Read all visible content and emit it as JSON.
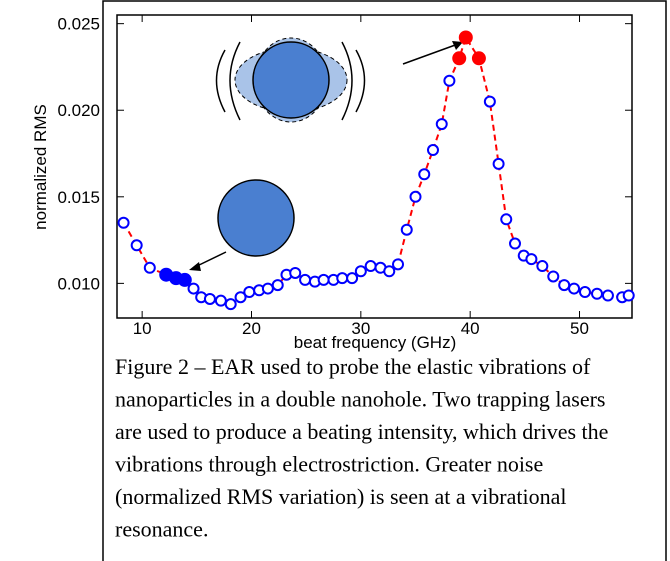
{
  "chart_data": {
    "type": "line",
    "xlabel": "beat frequency (GHz)",
    "ylabel": "normalized RMS",
    "x": [
      8.3,
      9.5,
      10.7,
      12.2,
      13.1,
      13.9,
      14.7,
      15.4,
      16.2,
      17.2,
      18.1,
      19.0,
      19.8,
      20.7,
      21.5,
      22.4,
      23.2,
      24.0,
      24.9,
      25.8,
      26.6,
      27.5,
      28.3,
      29.2,
      30.0,
      30.9,
      31.8,
      32.6,
      33.4,
      34.2,
      35.0,
      35.8,
      36.6,
      37.4,
      38.1,
      39.0,
      39.6,
      40.8,
      41.8,
      42.6,
      43.3,
      44.1,
      44.9,
      45.6,
      46.6,
      47.6,
      48.6,
      49.5,
      50.5,
      51.6,
      52.6,
      53.9,
      54.5
    ],
    "series": [
      {
        "color": "#ff0000",
        "marker_color": "#0000ff",
        "values": [
          0.0135,
          0.0122,
          0.0109,
          0.0105,
          0.0103,
          0.0102,
          0.0097,
          0.0092,
          0.0091,
          0.009,
          0.0088,
          0.0092,
          0.0095,
          0.0096,
          0.0097,
          0.0099,
          0.0105,
          0.0106,
          0.0102,
          0.0101,
          0.0102,
          0.0102,
          0.0103,
          0.0103,
          0.0107,
          0.011,
          0.0109,
          0.0107,
          0.0111,
          0.0131,
          0.015,
          0.0163,
          0.0177,
          0.0192,
          0.0217,
          0.023,
          0.0242,
          0.023,
          0.0205,
          0.0169,
          0.0137,
          0.0123,
          0.0116,
          0.0114,
          0.011,
          0.0104,
          0.0099,
          0.0097,
          0.0095,
          0.0094,
          0.0093,
          0.0092,
          0.0093
        ],
        "marker_fill": [
          null,
          null,
          null,
          "#0000ff",
          "#0000ff",
          "#0000ff",
          null,
          null,
          null,
          null,
          null,
          null,
          null,
          null,
          null,
          null,
          null,
          null,
          null,
          null,
          null,
          null,
          null,
          null,
          null,
          null,
          null,
          null,
          null,
          null,
          null,
          null,
          null,
          null,
          null,
          "#ff0000",
          "#ff0000",
          "#ff0000",
          null,
          null,
          null,
          null,
          null,
          null,
          null,
          null,
          null,
          null,
          null,
          null,
          null,
          null,
          null
        ]
      }
    ],
    "xlim": [
      7.7,
      54.8
    ],
    "ylim": [
      0.008,
      0.0255
    ],
    "xticks": [
      10,
      20,
      30,
      40,
      50
    ],
    "yticks": [
      {
        "value": 0.01,
        "label": "0.010"
      },
      0.015,
      {
        "value": 0.02,
        "label": "0.020"
      },
      0.025
    ]
  },
  "caption": [
    "Figure 2 – EAR used to probe the elastic vibrations of",
    "nanoparticles in a double nanohole. Two trapping lasers",
    "are used to produce a beating intensity, which drives the",
    "vibrations through electrostriction. Greater noise",
    "(normalized RMS variation) is seen at a vibrational",
    "resonance."
  ]
}
